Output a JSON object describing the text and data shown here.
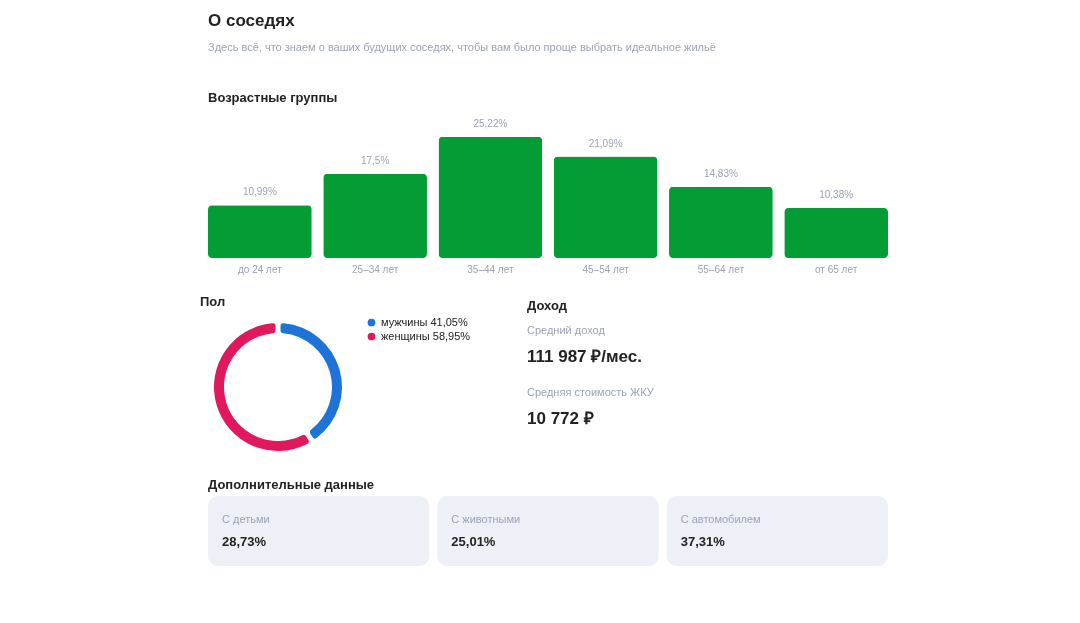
{
  "chart_data": [
    {
      "type": "other",
      "title": "О соседях",
      "subtitle": "Здесь всё, что знаем о ваших будущих соседях, чтобы вам было проще выбрать идеальное жильё"
    },
    {
      "type": "bar",
      "title": "Возрастные группы",
      "categories": [
        "до 24 лет",
        "25–34 лет",
        "35–44 лет",
        "45–54 лет",
        "55–64 лет",
        "от 65 лет"
      ],
      "values": [
        10.99,
        17.5,
        25.22,
        21.09,
        14.83,
        10.38
      ],
      "value_labels": [
        "10,99%",
        "17,5%",
        "25,22%",
        "21,09%",
        "14,83%",
        "10,38%"
      ],
      "color": "#049d35"
    },
    {
      "type": "donut",
      "title": "Пол",
      "categories": [
        "мужчины",
        "женщины"
      ],
      "values": [
        41.05,
        58.95
      ],
      "value_labels": [
        "41,05%",
        "58,95%"
      ],
      "colors": [
        "#1e73d8",
        "#e0195f"
      ],
      "legend": "right"
    },
    {
      "type": "other",
      "title": "Доход",
      "annotations": [
        "Средний доход",
        "111 987 ₽/мес.",
        "Средняя стоимость ЖКУ",
        "10 772 ₽"
      ]
    },
    {
      "type": "other",
      "title": "Дополнительные данные",
      "annotations": [
        "С детьми",
        "28,73%",
        "С животными",
        "25,01%",
        "С автомобилем",
        "37,31%"
      ]
    }
  ]
}
